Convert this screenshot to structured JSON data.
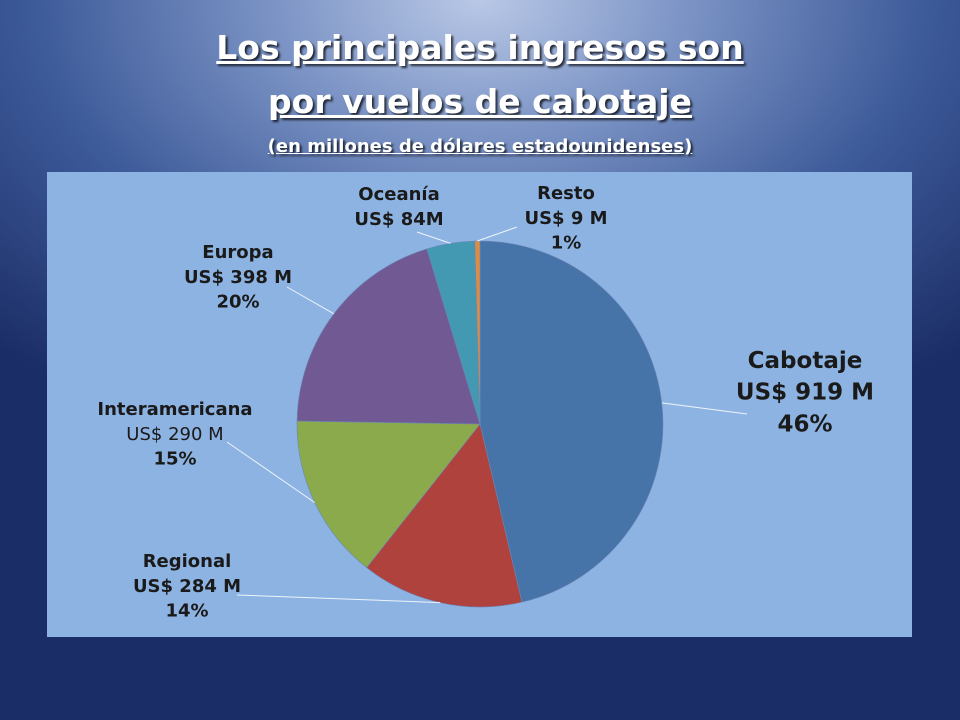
{
  "header": {
    "title_line1": "Los principales ingresos son",
    "title_line2": "por vuelos de cabotaje",
    "subtitle": "(en millones de dólares estadounidenses)"
  },
  "chart_data": {
    "type": "pie",
    "title": "Los principales ingresos son por vuelos de cabotaje",
    "subtitle": "(en millones de dólares estadounidenses)",
    "categories": [
      "Cabotaje",
      "Regional",
      "Interamericana",
      "Europa",
      "Oceanía",
      "Resto"
    ],
    "values": [
      919,
      284,
      290,
      398,
      84,
      9
    ],
    "value_labels": [
      "US$ 919 M",
      "US$ 284 M",
      "US$ 290 M",
      "US$ 398 M",
      "US$ 84M",
      "US$ 9 M"
    ],
    "percent_labels": [
      "46%",
      "14%",
      "15%",
      "20%",
      "",
      "1%"
    ],
    "colors": [
      "#4673a8",
      "#b0423e",
      "#8aaa4c",
      "#715a94",
      "#4299b1",
      "#dc8d43"
    ]
  }
}
